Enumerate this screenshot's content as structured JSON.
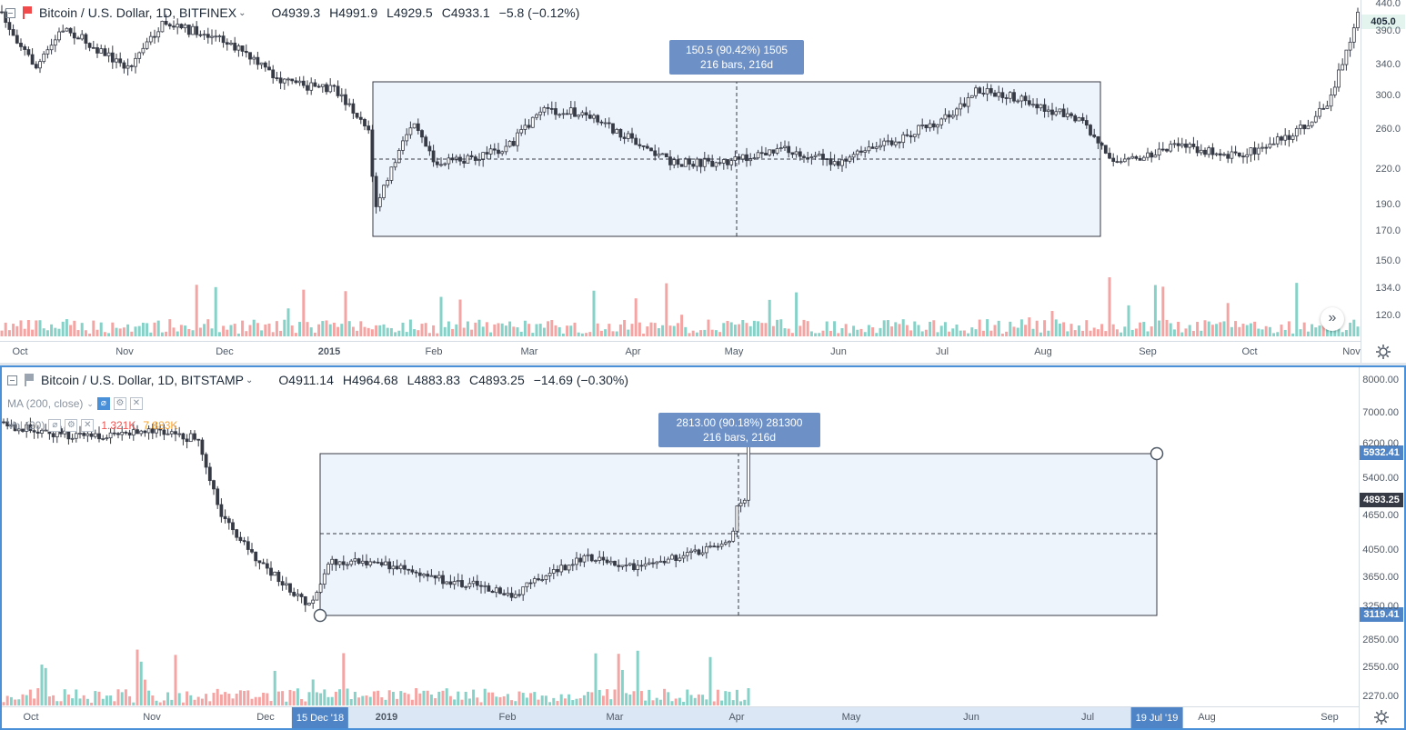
{
  "pane_top": {
    "symbol": "Bitcoin / U.S. Dollar, 1D, BITFINEX",
    "open": "O4939.3",
    "high": "H4991.9",
    "low": "L4929.5",
    "close": "C4933.1",
    "change": "−5.8 (−0.12%)",
    "flag_color": "#f24a4a",
    "measure_line1": "150.5 (90.42%) 1505",
    "measure_line2": "216 bars, 216d",
    "last_price_badge": "405.0",
    "price_ticks": [
      "440.0",
      "390.0",
      "340.0",
      "300.0",
      "260.0",
      "220.0",
      "190.0",
      "170.0",
      "150.0",
      "134.0",
      "120.0"
    ],
    "time_ticks": [
      "Oct",
      "Nov",
      "Dec",
      "2015",
      "Feb",
      "Mar",
      "Apr",
      "May",
      "Jun",
      "Jul",
      "Aug",
      "Sep",
      "Oct",
      "Nov"
    ],
    "scroll_icon": "double-chevron-right-icon"
  },
  "pane_bottom": {
    "symbol": "Bitcoin / U.S. Dollar, 1D, BITSTAMP",
    "open": "O4911.14",
    "high": "H4964.68",
    "low": "L4883.83",
    "close": "C4893.25",
    "change": "−14.69 (−0.30%)",
    "flag_color": "#9aa5b1",
    "ma_label": "MA (200, close)",
    "vol_label": "Vol (20)",
    "vol_value_red": "1.321K",
    "vol_value_orange": "7.883K",
    "measure_line1": "2813.00 (90.18%) 281300",
    "measure_line2": "216 bars, 216d",
    "badge_top": "5932.41",
    "badge_last": "4893.25",
    "badge_bottom": "3119.41",
    "price_ticks": [
      "8000.00",
      "7000.00",
      "6200.00",
      "5400.00",
      "4650.00",
      "4050.00",
      "3650.00",
      "3250.00",
      "2850.00",
      "2550.00",
      "2270.00"
    ],
    "time_ticks": [
      "Oct",
      "Nov",
      "Dec",
      "2019",
      "Feb",
      "Mar",
      "Apr",
      "May",
      "Jun",
      "Jul",
      "Aug",
      "Sep"
    ],
    "time_badge_start": "15 Dec '18",
    "time_badge_end": "19 Jul '19"
  },
  "colors": {
    "up": "#26a69a",
    "down": "#ef5350",
    "candle": "#363a45",
    "vol_up": "#86d1c8",
    "vol_down": "#f4a5a3",
    "range_fill": "#eef4fc",
    "accent": "#4a90d9"
  }
}
